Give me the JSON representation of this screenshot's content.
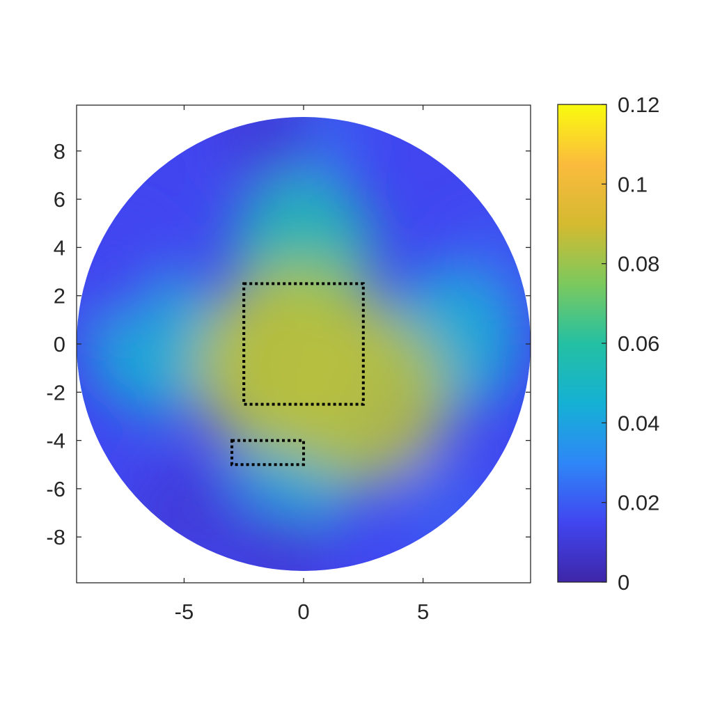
{
  "chart_data": {
    "type": "heatmap",
    "title": "",
    "xlabel": "",
    "ylabel": "",
    "xlim": [
      -9.5,
      9.5
    ],
    "ylim": [
      -9.9,
      9.9
    ],
    "xticks": [
      -5,
      0,
      5
    ],
    "xtick_labels": [
      "-5",
      "0",
      "5"
    ],
    "yticks": [
      8,
      6,
      4,
      2,
      0,
      -2,
      -4,
      -6,
      -8
    ],
    "ytick_labels": [
      "8",
      "6",
      "4",
      "2",
      "0",
      "-2",
      "-4",
      "-6",
      "-8"
    ],
    "domain": {
      "shape": "circle",
      "center": [
        0,
        0
      ],
      "radius": 9.5
    },
    "colorbar": {
      "colormap": "parula",
      "range": [
        0,
        0.12
      ],
      "ticks": [
        0.12,
        0.1,
        0.08,
        0.06,
        0.04,
        0.02,
        0
      ],
      "tick_labels": [
        "0.12",
        "0.1",
        "0.08",
        "0.06",
        "0.04",
        "0.02",
        "0"
      ],
      "colors": [
        "#3e26a8",
        "#4146f0",
        "#2e87f7",
        "#15b1d4",
        "#24c0a3",
        "#7cc95d",
        "#d5ba30",
        "#fbbb3d",
        "#f9fb0e"
      ]
    },
    "approx_field_samples": [
      {
        "x": 0,
        "y": 0,
        "value": 0.08
      },
      {
        "x": -1,
        "y": -1,
        "value": 0.085
      },
      {
        "x": 2.5,
        "y": -2.2,
        "value": 0.085
      },
      {
        "x": 0,
        "y": 4,
        "value": 0.055
      },
      {
        "x": 0,
        "y": -4.5,
        "value": 0.045
      },
      {
        "x": -6,
        "y": 0,
        "value": 0.045
      },
      {
        "x": 6,
        "y": 0,
        "value": 0.045
      },
      {
        "x": 0,
        "y": 8.5,
        "value": 0.025
      },
      {
        "x": -1.5,
        "y": 9,
        "value": 0.01
      },
      {
        "x": -1,
        "y": -9,
        "value": 0.01
      },
      {
        "x": -5,
        "y": -7,
        "value": 0.01
      },
      {
        "x": -8,
        "y": 3,
        "value": 0.015
      },
      {
        "x": 8,
        "y": 3,
        "value": 0.02
      },
      {
        "x": 6,
        "y": -7,
        "value": 0.02
      }
    ],
    "annotations": [
      {
        "shape": "rectangle",
        "style": "dotted",
        "color": "#000000",
        "x": [
          -2.5,
          2.5
        ],
        "y": [
          -2.5,
          2.5
        ]
      },
      {
        "shape": "rectangle",
        "style": "dotted",
        "color": "#000000",
        "x": [
          -3,
          0
        ],
        "y": [
          -5,
          -4
        ]
      }
    ]
  }
}
